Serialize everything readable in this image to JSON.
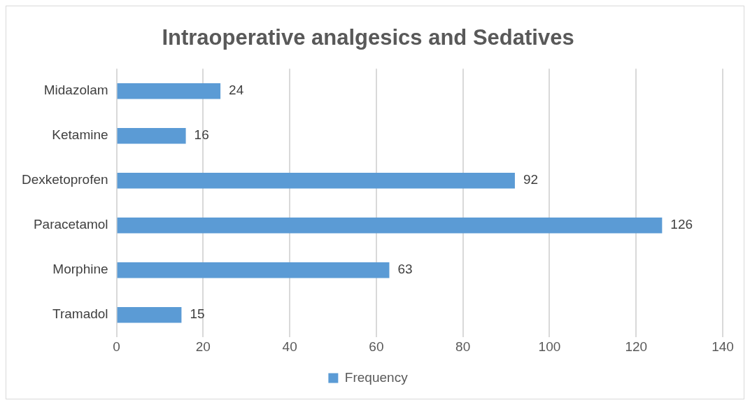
{
  "chart_data": {
    "type": "bar",
    "orientation": "horizontal",
    "title": "Intraoperative analgesics and Sedatives",
    "categories": [
      "Midazolam",
      "Ketamine",
      "Dexketoprofen",
      "Paracetamol",
      "Morphine",
      "Tramadol"
    ],
    "series": [
      {
        "name": "Frequency",
        "color": "#5b9bd5",
        "values": [
          24,
          16,
          92,
          126,
          63,
          15
        ]
      }
    ],
    "xlim": [
      0,
      140
    ],
    "xticks": [
      0,
      20,
      40,
      60,
      80,
      100,
      120,
      140
    ],
    "grid": "x",
    "legend": "bottom",
    "data_labels": true
  }
}
